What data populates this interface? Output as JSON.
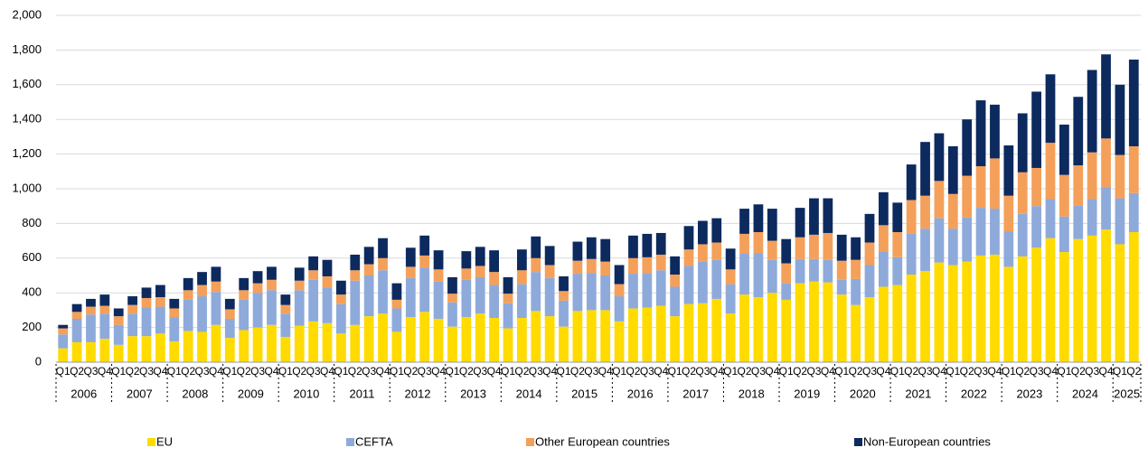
{
  "chart_data": {
    "type": "stacked-bar",
    "categories": [
      "Q1",
      "Q2",
      "Q3",
      "Q4",
      "Q1",
      "Q2",
      "Q3",
      "Q4",
      "Q1",
      "Q2",
      "Q3",
      "Q4",
      "Q1",
      "Q2",
      "Q3",
      "Q4",
      "Q1",
      "Q2",
      "Q3",
      "Q4",
      "Q1",
      "Q2",
      "Q3",
      "Q4",
      "Q1",
      "Q2",
      "Q3",
      "Q4",
      "Q1",
      "Q2",
      "Q3",
      "Q4",
      "Q1",
      "Q2",
      "Q3",
      "Q4",
      "Q1",
      "Q2",
      "Q3",
      "Q4",
      "Q1",
      "Q2",
      "Q3",
      "Q4",
      "Q1",
      "Q2",
      "Q3",
      "Q4",
      "Q1",
      "Q2",
      "Q3",
      "Q4",
      "Q1",
      "Q2",
      "Q3",
      "Q4",
      "Q1",
      "Q2",
      "Q3",
      "Q4",
      "Q1",
      "Q2",
      "Q3",
      "Q4",
      "Q1",
      "Q2",
      "Q3",
      "Q4",
      "Q1",
      "Q2",
      "Q3",
      "Q4",
      "Q1",
      "Q2",
      "Q3",
      "Q4",
      "Q1",
      "Q2"
    ],
    "years": [
      "2006",
      "2007",
      "2008",
      "2009",
      "2010",
      "2011",
      "2012",
      "2013",
      "2014",
      "2015",
      "2016",
      "2017",
      "2018",
      "2019",
      "2020",
      "2021",
      "2022",
      "2023",
      "2024",
      "2025"
    ],
    "series": [
      {
        "name": "EU",
        "color": "#ffdb00",
        "values": [
          80,
          115,
          115,
          135,
          100,
          150,
          150,
          165,
          120,
          180,
          175,
          215,
          140,
          185,
          200,
          215,
          145,
          210,
          235,
          225,
          165,
          215,
          265,
          280,
          175,
          260,
          290,
          250,
          205,
          260,
          280,
          255,
          195,
          255,
          295,
          265,
          205,
          295,
          300,
          300,
          235,
          310,
          315,
          325,
          265,
          335,
          340,
          365,
          280,
          390,
          375,
          400,
          360,
          455,
          465,
          460,
          390,
          330,
          375,
          435,
          445,
          505,
          525,
          575,
          560,
          580,
          615,
          620,
          550,
          610,
          660,
          715,
          635,
          710,
          730,
          765,
          680,
          750
        ]
      },
      {
        "name": "CEFTA",
        "color": "#8eaadb",
        "values": [
          80,
          135,
          160,
          145,
          115,
          130,
          165,
          155,
          140,
          180,
          205,
          190,
          110,
          175,
          200,
          200,
          135,
          205,
          240,
          205,
          170,
          255,
          235,
          250,
          135,
          225,
          255,
          215,
          140,
          215,
          210,
          190,
          145,
          195,
          225,
          220,
          150,
          215,
          215,
          200,
          145,
          200,
          200,
          205,
          170,
          220,
          240,
          225,
          170,
          235,
          255,
          190,
          95,
          140,
          130,
          130,
          85,
          150,
          185,
          205,
          160,
          235,
          245,
          255,
          210,
          255,
          275,
          265,
          205,
          245,
          240,
          225,
          205,
          195,
          210,
          245,
          265,
          225
        ]
      },
      {
        "name": "Other European countries",
        "color": "#f4a05a",
        "values": [
          35,
          40,
          45,
          45,
          50,
          50,
          55,
          55,
          50,
          55,
          65,
          60,
          55,
          55,
          55,
          60,
          50,
          55,
          55,
          65,
          55,
          60,
          65,
          70,
          50,
          65,
          70,
          70,
          50,
          65,
          65,
          75,
          55,
          80,
          80,
          75,
          55,
          75,
          80,
          80,
          70,
          90,
          90,
          90,
          70,
          95,
          100,
          100,
          85,
          115,
          120,
          110,
          115,
          125,
          140,
          155,
          110,
          110,
          130,
          150,
          145,
          195,
          190,
          215,
          200,
          240,
          240,
          290,
          205,
          240,
          220,
          325,
          240,
          230,
          270,
          280,
          250,
          270
        ]
      },
      {
        "name": "Non-European countries",
        "color": "#0d2a5f",
        "values": [
          20,
          45,
          45,
          65,
          45,
          50,
          60,
          70,
          55,
          70,
          75,
          85,
          60,
          70,
          70,
          75,
          60,
          75,
          80,
          95,
          80,
          90,
          100,
          115,
          95,
          110,
          115,
          110,
          95,
          100,
          110,
          125,
          95,
          120,
          125,
          110,
          85,
          110,
          125,
          130,
          110,
          130,
          135,
          125,
          105,
          135,
          135,
          140,
          120,
          145,
          160,
          185,
          140,
          170,
          210,
          200,
          150,
          130,
          165,
          190,
          170,
          205,
          310,
          275,
          275,
          325,
          380,
          310,
          290,
          340,
          440,
          395,
          290,
          395,
          475,
          485,
          405,
          500
        ]
      }
    ],
    "ylim": [
      0,
      2000
    ],
    "yticks": [
      0,
      {
        "value": 200,
        "label": "200"
      },
      {
        "value": 400,
        "label": "400"
      },
      {
        "value": 600,
        "label": "600"
      },
      {
        "value": 800,
        "label": "800"
      },
      {
        "value": 1000,
        "label": "1,000"
      },
      {
        "value": 1200,
        "label": "1,200"
      },
      {
        "value": 1400,
        "label": "1,400"
      },
      {
        "value": 1600,
        "label": "1,600"
      },
      {
        "value": 1800,
        "label": "1,800"
      },
      {
        "value": 2000,
        "label": "2,000"
      }
    ],
    "grid": true,
    "legend": "bottom"
  }
}
